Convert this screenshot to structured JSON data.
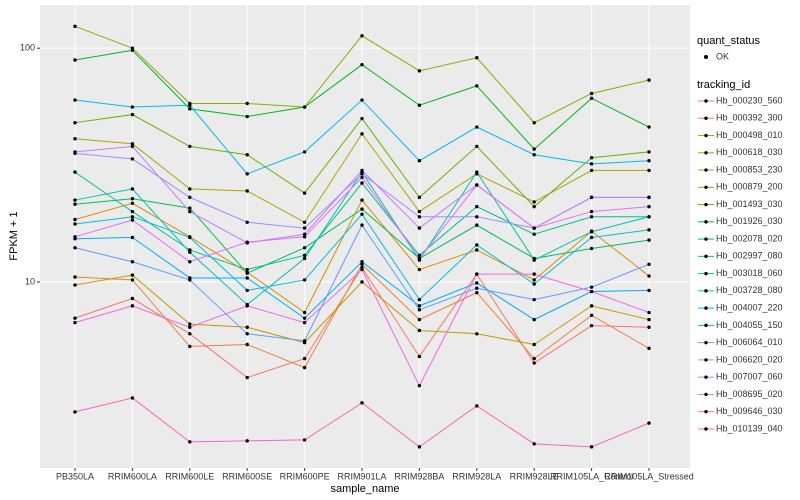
{
  "chart_data": {
    "type": "line",
    "x_label": "sample_name",
    "y_label": "FPKM + 1",
    "log_scale": true,
    "grid": true,
    "ylim": [
      1.6,
      153
    ],
    "yticks": [
      10,
      100
    ],
    "status_legend_title": "quant_status",
    "status_legend_label": "OK",
    "legend_title": "tracking_id",
    "categories": [
      "PB350LA",
      "RRIM600LA",
      "RRIM600LE",
      "RRIM600SE",
      "RRIM600PE",
      "RRIM901LA",
      "RRIM928BA",
      "RRIM928LA",
      "RRIM928LE",
      "RRIM105LA_Control",
      "RRIM105LA_Stressed"
    ],
    "series": [
      {
        "name": "Hb_000230_560",
        "color": "#F8766D",
        "values": [
          7.0,
          8.5,
          6.0,
          3.9,
          4.7,
          11.5,
          4.8,
          10.8,
          4.5,
          6.5,
          6.4
        ]
      },
      {
        "name": "Hb_000392_300",
        "color": "#EC8239",
        "values": [
          10.5,
          10.2,
          5.3,
          5.4,
          4.3,
          11.9,
          6.9,
          9.0,
          4.7,
          7.2,
          5.2
        ]
      },
      {
        "name": "Hb_000498_010",
        "color": "#DB8E00",
        "values": [
          18.5,
          21.7,
          15.6,
          11.0,
          7.4,
          22.4,
          11.3,
          13.7,
          10.2,
          16.5,
          10.6
        ]
      },
      {
        "name": "Hb_000618_030",
        "color": "#C79800",
        "values": [
          9.7,
          10.7,
          6.6,
          6.4,
          5.5,
          10.0,
          6.2,
          6.0,
          5.4,
          7.9,
          6.9
        ]
      },
      {
        "name": "Hb_000853_230",
        "color": "#AEA200",
        "values": [
          41,
          39,
          25,
          24.5,
          18,
          43,
          20,
          29,
          22,
          30,
          30
        ]
      },
      {
        "name": "Hb_000879_200",
        "color": "#8FAA00",
        "values": [
          124,
          100,
          58,
          58,
          56,
          113,
          80,
          91,
          48,
          64,
          73
        ]
      },
      {
        "name": "Hb_001493_030",
        "color": "#64B200",
        "values": [
          48,
          52,
          38,
          35,
          24,
          50,
          23,
          38,
          21,
          34,
          36
        ]
      },
      {
        "name": "Hb_001926_030",
        "color": "#00B81B",
        "values": [
          89,
          98,
          55,
          51,
          56,
          85,
          57,
          69,
          37,
          61,
          46
        ]
      },
      {
        "name": "Hb_002078_020",
        "color": "#00BD5C",
        "values": [
          21.5,
          22.7,
          20.7,
          10.9,
          14,
          20.5,
          12.6,
          17.5,
          12.6,
          13.9,
          15.1
        ]
      },
      {
        "name": "Hb_002997_080",
        "color": "#00C08D",
        "values": [
          29.5,
          20,
          13.7,
          11.3,
          13,
          26.5,
          13,
          21,
          16,
          19,
          19
        ]
      },
      {
        "name": "Hb_003018_060",
        "color": "#00C1B2",
        "values": [
          22.4,
          25,
          13.4,
          8,
          12.6,
          29.5,
          12.4,
          29.5,
          12.4,
          16.4,
          19
        ]
      },
      {
        "name": "Hb_003728_080",
        "color": "#00BFD4",
        "values": [
          17.7,
          19,
          15.5,
          9.2,
          10.2,
          19.5,
          8.4,
          14.4,
          9.8,
          15.5,
          16.7
        ]
      },
      {
        "name": "Hb_004007_220",
        "color": "#00BAEE",
        "values": [
          60,
          56,
          57,
          29,
          36,
          60,
          33,
          46,
          35,
          32,
          33
        ]
      },
      {
        "name": "Hb_004055_150",
        "color": "#00ADFA",
        "values": [
          15.3,
          15.5,
          10.4,
          10.4,
          7,
          12.2,
          7.9,
          9.9,
          6.9,
          9.1,
          9.2
        ]
      },
      {
        "name": "Hb_006064_010",
        "color": "#5C9DFF",
        "values": [
          14,
          12.2,
          10.2,
          6,
          5.6,
          17.5,
          7.6,
          9.4,
          8.4,
          9.5,
          11.9
        ]
      },
      {
        "name": "Hb_006620_020",
        "color": "#9F8CFF",
        "values": [
          35.5,
          33.6,
          23,
          18,
          17,
          29,
          19,
          19,
          17,
          23,
          23
        ]
      },
      {
        "name": "Hb_007007_060",
        "color": "#C77CFF",
        "values": [
          36,
          38,
          20,
          14.7,
          16,
          30,
          17,
          26,
          17,
          23,
          23
        ]
      },
      {
        "name": "Hb_008695_020",
        "color": "#E46EF6",
        "values": [
          15.6,
          18.4,
          12.2,
          14.8,
          15.6,
          28,
          12.6,
          26,
          17,
          20,
          21
        ]
      },
      {
        "name": "Hb_009646_030",
        "color": "#F564E3",
        "values": [
          6.7,
          7.9,
          6.4,
          7.9,
          6.7,
          11.3,
          3.6,
          10.8,
          10.8,
          9.1,
          7.4
        ]
      },
      {
        "name": "Hb_010139_040",
        "color": "#FF64B0",
        "values": [
          2.78,
          3.19,
          2.07,
          2.09,
          2.11,
          3.04,
          1.97,
          2.95,
          2.03,
          1.97,
          2.49
        ]
      }
    ]
  }
}
